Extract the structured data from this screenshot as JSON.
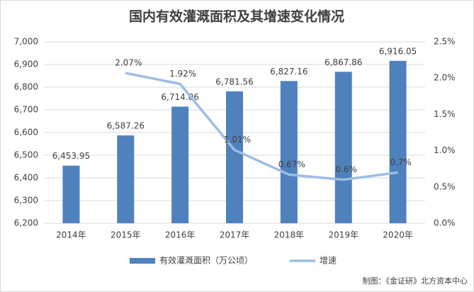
{
  "chart_data": {
    "type": "bar",
    "title": "国内有效灌溉面积及其增速变化情况",
    "categories": [
      "2014年",
      "2015年",
      "2016年",
      "2017年",
      "2018年",
      "2019年",
      "2020年"
    ],
    "series": [
      {
        "name": "有效灌溉面积（万公顷）",
        "type": "bar",
        "color": "#4f81bd",
        "values": [
          6453.95,
          6587.26,
          6714.06,
          6781.56,
          6827.16,
          6867.86,
          6916.05
        ],
        "value_labels": [
          "6,453.95",
          "6,587.26",
          "6,714.06",
          "6,781.56",
          "6,827.16",
          "6,867.86",
          "6,916.05"
        ]
      },
      {
        "name": "增速",
        "type": "line",
        "axis": "y2",
        "color": "#9dbde3",
        "values": [
          null,
          2.07,
          1.92,
          1.01,
          0.67,
          0.6,
          0.7
        ],
        "value_labels": [
          null,
          "2.07%",
          "1.92%",
          "1.01%",
          "0.67%",
          "0.6%",
          "0.7%"
        ]
      }
    ],
    "ylim": [
      6200,
      7000
    ],
    "yticks": [
      {
        "value": 6200,
        "label": "6,200"
      },
      {
        "value": 6300,
        "label": "6,300"
      },
      {
        "value": 6400,
        "label": "6,400"
      },
      {
        "value": 6500,
        "label": "6,500"
      },
      {
        "value": 6600,
        "label": "6,600"
      },
      {
        "value": 6700,
        "label": "6,700"
      },
      {
        "value": 6800,
        "label": "6,800"
      },
      {
        "value": 6900,
        "label": "6,900"
      },
      {
        "value": 7000,
        "label": "7,000"
      }
    ],
    "y2lim": [
      0,
      2.5
    ],
    "y2ticks": [
      {
        "value": 0,
        "label": "0.0%"
      },
      {
        "value": 0.5,
        "label": "0.5%"
      },
      {
        "value": 1,
        "label": "1.0%"
      },
      {
        "value": 1.5,
        "label": "1.5%"
      },
      {
        "value": 2,
        "label": "2.0%"
      },
      {
        "value": 2.5,
        "label": "2.5%"
      }
    ],
    "grid": true,
    "legend": "bottom",
    "source": "制图：《金证研》北方资本中心"
  }
}
